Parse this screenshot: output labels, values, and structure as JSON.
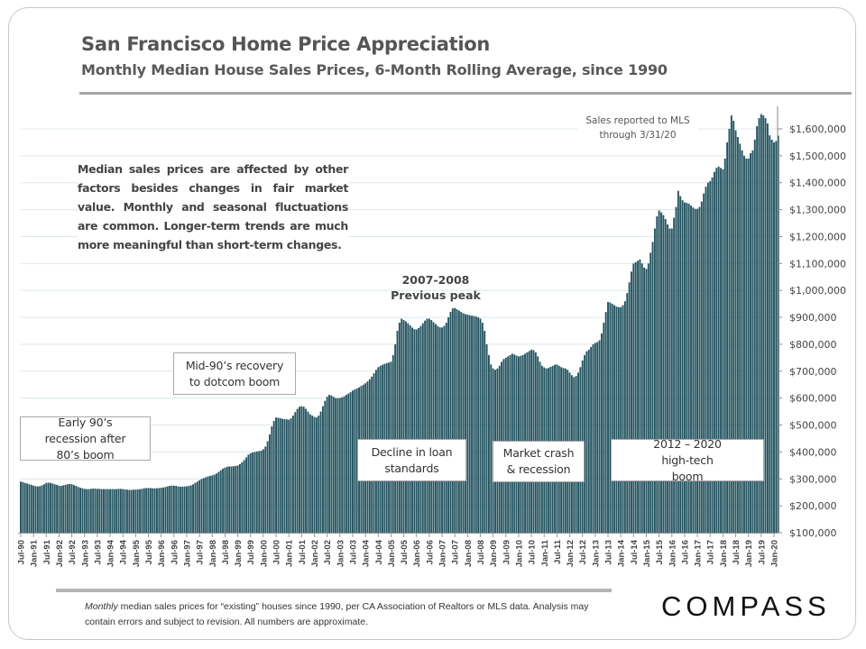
{
  "header": {
    "title": "San Francisco Home Price Appreciation",
    "subtitle": "Monthly Median House Sales Prices, 6-Month Rolling Average, since 1990"
  },
  "annotations": {
    "note": "Median sales prices are affected by other factors besides changes in fair market value. Monthly and seasonal fluctuations are common. Longer-term trends are much more meaningful than short-term changes.",
    "peak_line1": "2007-2008",
    "peak_line2": "Previous peak",
    "mls_line1": "Sales reported to MLS",
    "mls_line2": "through 3/31/20",
    "early90s": "Early 90’s recession after 80’s boom",
    "mid90s": "Mid-90’s recovery to dotcom boom",
    "loan": "Decline in loan standards",
    "crash": "Market crash & recession",
    "boom": "2012 – 2020 high-tech boom"
  },
  "footer": {
    "italic": "Monthly",
    "text": " median sales prices for “existing” houses since 1990, per CA Association of Realtors or MLS data.  Analysis may contain errors and subject to revision. All numbers are approximate."
  },
  "logo": {
    "text": "COMPASS"
  },
  "colors": {
    "bar": "#23535f",
    "grid": "#dce8ec",
    "axis": "#888888"
  },
  "chart_data": {
    "type": "bar",
    "title": "San Francisco Home Price Appreciation",
    "subtitle": "Monthly Median House Sales Prices, 6-Month Rolling Average, since 1990",
    "x_start": "Jul-90",
    "x_end": "Mar-20",
    "x_interval": "monthly",
    "ylim": [
      100000,
      1650000
    ],
    "y_axis_position": "right",
    "grid": true,
    "y_ticks": [
      "$100,000",
      "$200,000",
      "$300,000",
      "$400,000",
      "$500,000",
      "$600,000",
      "$700,000",
      "$800,000",
      "$900,000",
      "$1,000,000",
      "$1,100,000",
      "$1,200,000",
      "$1,300,000",
      "$1,400,000",
      "$1,500,000",
      "$1,600,000"
    ],
    "x_ticks": [
      "Jul-90",
      "Jan-91",
      "Jul-91",
      "Jan-92",
      "Jul-92",
      "Jan-93",
      "Jul-93",
      "Jan-94",
      "Jul-94",
      "Jan-95",
      "Jul-95",
      "Jan-96",
      "Jul-96",
      "Jan-97",
      "Jul-97",
      "Jan-98",
      "Jul-98",
      "Jan-99",
      "Jul-99",
      "Jan-00",
      "Jul-00",
      "Jan-01",
      "Jul-01",
      "Jan-02",
      "Jul-02",
      "Jan-03",
      "Jul-03",
      "Jan-04",
      "Jul-04",
      "Jan-05",
      "Jul-05",
      "Jan-06",
      "Jul-06",
      "Jan-07",
      "Jul-07",
      "Jan-08",
      "Jul-08",
      "Jan-09",
      "Jul-09",
      "Jan-10",
      "Jul-10",
      "Jan-11",
      "Jul-11",
      "Jan-12",
      "Jul-12",
      "Jan-13",
      "Jul-13",
      "Jan-14",
      "Jul-14",
      "Jan-15",
      "Jul-15",
      "Jan-16",
      "Jul-16",
      "Jan-17",
      "Jul-17",
      "Jan-18",
      "Jul-18",
      "Jan-19",
      "Jul-19",
      "Jan-20"
    ],
    "values": [
      290000,
      288000,
      285000,
      283000,
      280000,
      278000,
      275000,
      273000,
      272000,
      273000,
      276000,
      280000,
      285000,
      286000,
      285000,
      283000,
      280000,
      278000,
      275000,
      274000,
      276000,
      278000,
      280000,
      281000,
      280000,
      277000,
      274000,
      270000,
      267000,
      265000,
      263000,
      262000,
      262000,
      263000,
      264000,
      264000,
      263000,
      263000,
      262000,
      262000,
      262000,
      262000,
      262000,
      262000,
      262000,
      262000,
      263000,
      263000,
      262000,
      261000,
      260000,
      259000,
      259000,
      260000,
      260000,
      261000,
      262000,
      263000,
      265000,
      266000,
      266000,
      266000,
      265000,
      265000,
      265000,
      266000,
      267000,
      268000,
      270000,
      272000,
      274000,
      275000,
      275000,
      274000,
      272000,
      271000,
      271000,
      272000,
      272000,
      274000,
      276000,
      280000,
      285000,
      290000,
      295000,
      300000,
      303000,
      306000,
      309000,
      311000,
      313000,
      316000,
      320000,
      326000,
      332000,
      338000,
      342000,
      345000,
      346000,
      346000,
      347000,
      348000,
      350000,
      355000,
      362000,
      370000,
      380000,
      390000,
      395000,
      398000,
      400000,
      402000,
      403000,
      405000,
      410000,
      420000,
      440000,
      465000,
      495000,
      515000,
      528000,
      527000,
      525000,
      523000,
      522000,
      521000,
      520000,
      525000,
      535000,
      548000,
      560000,
      568000,
      570000,
      568000,
      560000,
      550000,
      540000,
      535000,
      530000,
      528000,
      535000,
      550000,
      570000,
      590000,
      605000,
      612000,
      610000,
      605000,
      600000,
      600000,
      600000,
      603000,
      607000,
      612000,
      617000,
      622000,
      628000,
      632000,
      636000,
      640000,
      645000,
      650000,
      655000,
      662000,
      670000,
      680000,
      692000,
      705000,
      715000,
      720000,
      724000,
      727000,
      730000,
      732000,
      735000,
      760000,
      800000,
      850000,
      880000,
      895000,
      890000,
      885000,
      878000,
      870000,
      862000,
      856000,
      855000,
      860000,
      868000,
      878000,
      888000,
      895000,
      895000,
      890000,
      882000,
      875000,
      868000,
      863000,
      862000,
      868000,
      880000,
      900000,
      920000,
      933000,
      935000,
      930000,
      925000,
      920000,
      915000,
      912000,
      910000,
      908000,
      906000,
      905000,
      903000,
      900000,
      895000,
      880000,
      850000,
      800000,
      760000,
      725000,
      710000,
      705000,
      710000,
      720000,
      735000,
      745000,
      750000,
      755000,
      760000,
      765000,
      762000,
      758000,
      755000,
      757000,
      760000,
      765000,
      770000,
      775000,
      780000,
      778000,
      770000,
      755000,
      735000,
      720000,
      714000,
      710000,
      712000,
      716000,
      720000,
      724000,
      725000,
      720000,
      715000,
      712000,
      710000,
      705000,
      695000,
      685000,
      678000,
      682000,
      695000,
      715000,
      740000,
      760000,
      774000,
      780000,
      790000,
      800000,
      805000,
      808000,
      815000,
      840000,
      880000,
      920000,
      957000,
      955000,
      950000,
      945000,
      940000,
      938000,
      938000,
      945000,
      960000,
      990000,
      1030000,
      1070000,
      1100000,
      1105000,
      1110000,
      1115000,
      1100000,
      1085000,
      1080000,
      1100000,
      1140000,
      1180000,
      1230000,
      1275000,
      1297000,
      1290000,
      1280000,
      1265000,
      1245000,
      1230000,
      1230000,
      1270000,
      1310000,
      1370000,
      1350000,
      1335000,
      1327000,
      1325000,
      1322000,
      1315000,
      1308000,
      1303000,
      1303000,
      1310000,
      1330000,
      1360000,
      1385000,
      1400000,
      1406000,
      1420000,
      1440000,
      1455000,
      1460000,
      1455000,
      1450000,
      1490000,
      1550000,
      1600000,
      1650000,
      1630000,
      1595000,
      1570000,
      1545000,
      1520000,
      1500000,
      1490000,
      1490000,
      1510000,
      1520000,
      1560000,
      1610000,
      1640000,
      1655000,
      1650000,
      1640000,
      1620000,
      1576000,
      1560000,
      1550000,
      1555000,
      1575000
    ]
  }
}
